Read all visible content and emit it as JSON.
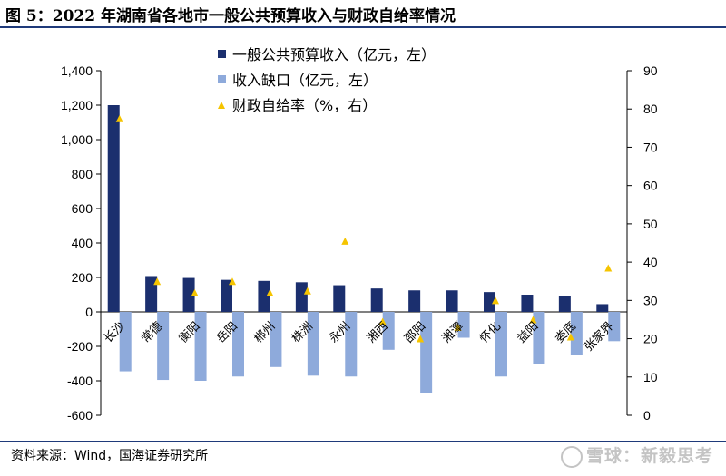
{
  "header": {
    "title": "图 5：2022 年湖南省各地市一般公共预算收入与财政自给率情况"
  },
  "footer": {
    "source": "资料来源：Wind，国海证券研究所",
    "watermark": "雪球：新毅思考"
  },
  "colors": {
    "revenue": "#1b2f6e",
    "gap": "#8eaadb",
    "ratio": "#f5c400",
    "rule": "#1f3a7a"
  },
  "chart_data": {
    "type": "bar",
    "categories": [
      "长沙",
      "常德",
      "衡阳",
      "岳阳",
      "郴州",
      "株洲",
      "永州",
      "湘西",
      "邵阳",
      "湘潭",
      "怀化",
      "益阳",
      "娄底",
      "张家界"
    ],
    "series": [
      {
        "name": "一般公共预算收入（亿元，左）",
        "axis": "left",
        "type": "bar",
        "values": [
          1200,
          208,
          197,
          186,
          180,
          172,
          155,
          136,
          125,
          125,
          115,
          100,
          90,
          45
        ]
      },
      {
        "name": "收入缺口（亿元，左）",
        "axis": "left",
        "type": "bar",
        "values": [
          -345,
          -395,
          -400,
          -375,
          -320,
          -370,
          -375,
          -220,
          -470,
          -150,
          -375,
          -300,
          -250,
          -170
        ]
      },
      {
        "name": "财政自给率（%，右）",
        "axis": "right",
        "type": "scatter",
        "marker": "triangle",
        "values": [
          77.5,
          35,
          32,
          35,
          32,
          32.5,
          45.5,
          24.5,
          20,
          23,
          30,
          25,
          20.5,
          38.5
        ]
      }
    ],
    "left_axis": {
      "min": -600,
      "max": 1400,
      "ticks": [
        "1,400",
        "1,200",
        "1,000",
        "800",
        "600",
        "400",
        "200",
        "0",
        "-200",
        "-400",
        "-600"
      ]
    },
    "right_axis": {
      "min": 0,
      "max": 90,
      "ticks": [
        "90",
        "80",
        "70",
        "60",
        "50",
        "40",
        "30",
        "20",
        "10",
        "0"
      ]
    },
    "legend_position": "top-center",
    "grid": false
  }
}
